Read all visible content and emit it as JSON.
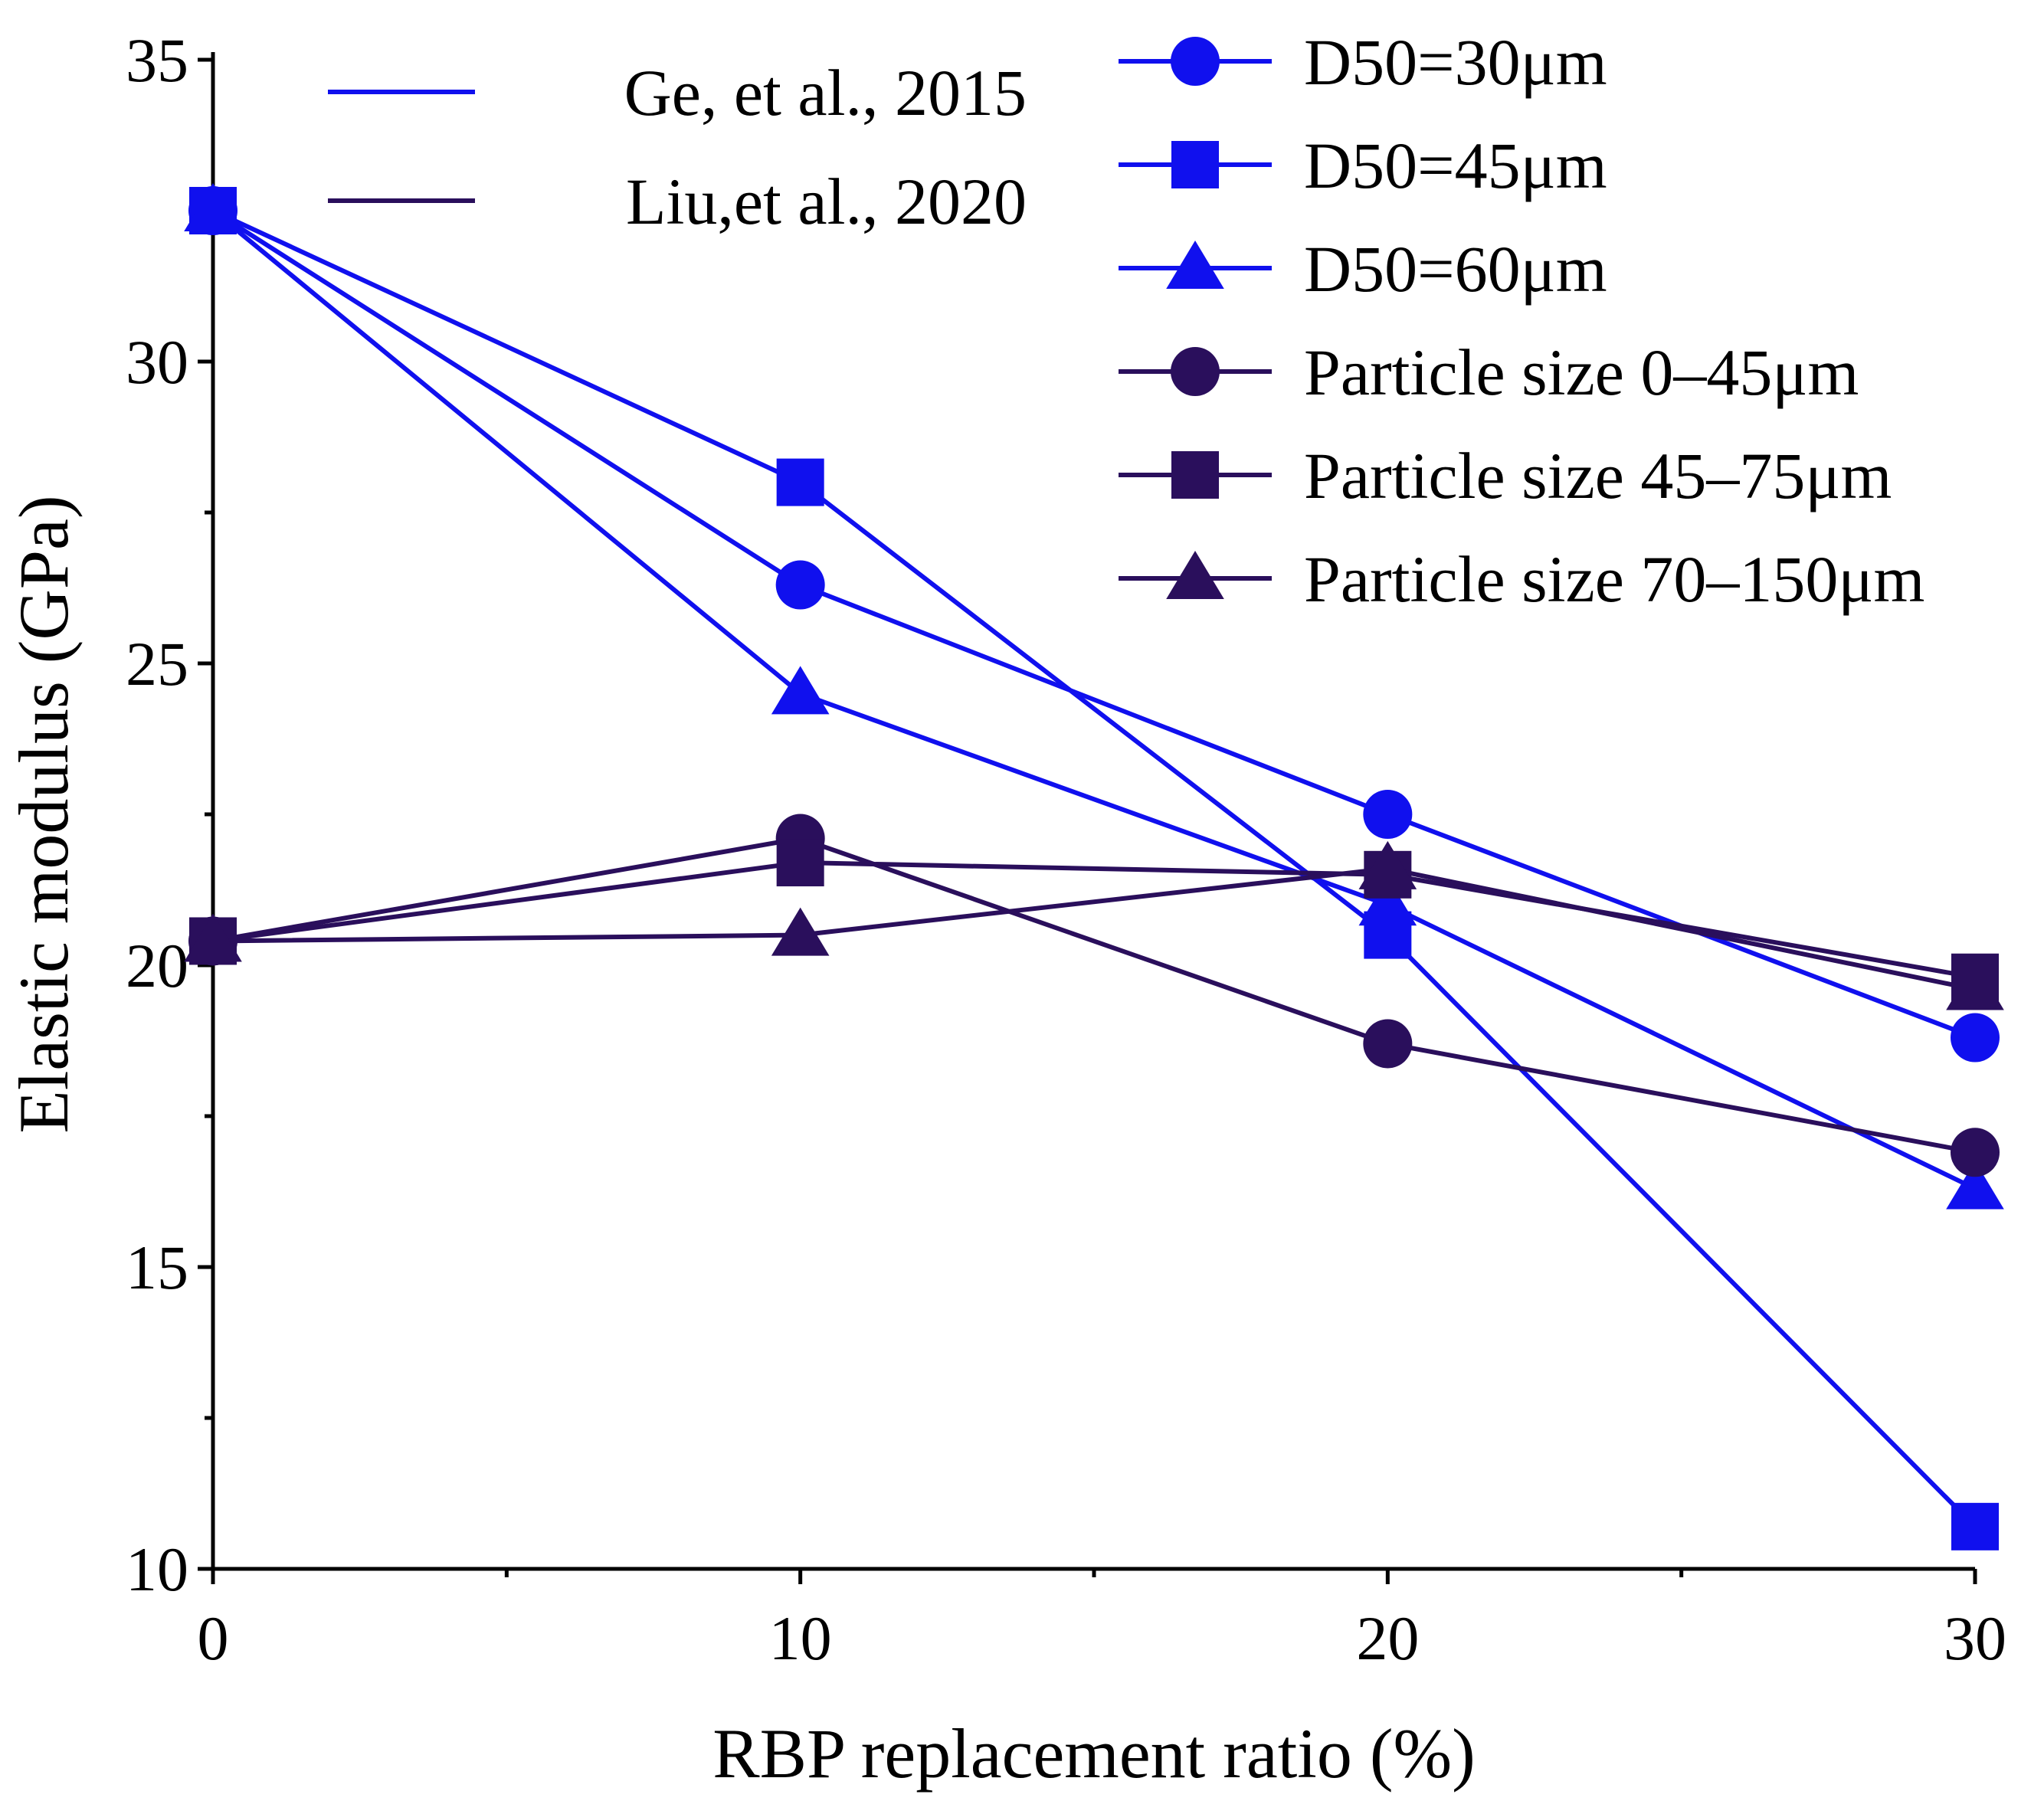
{
  "chart_data": {
    "type": "line",
    "title": "",
    "xlabel": "RBP replacement ratio (%)",
    "ylabel": "Elastic modulus (GPa)",
    "xlim": [
      0,
      30
    ],
    "ylim": [
      10,
      35
    ],
    "x_ticks": [
      "0",
      "10",
      "20",
      "30"
    ],
    "y_ticks": [
      "10",
      "15",
      "20",
      "25",
      "30",
      "35"
    ],
    "x_tick_values": [
      0,
      10,
      20,
      30
    ],
    "y_tick_values": [
      10,
      15,
      20,
      25,
      30,
      35
    ],
    "x_minor_ticks": [
      5,
      15,
      25
    ],
    "y_minor_ticks": [
      12.5,
      17.5,
      22.5,
      27.5,
      32.5
    ],
    "grid": false,
    "source_legend": [
      {
        "label": "Ge, et al., 2015",
        "color": "#1010ee"
      },
      {
        "label": "Liu,et al., 2020",
        "color": "#2a0f5c"
      }
    ],
    "series": [
      {
        "name": "D50=30μm",
        "marker": "circle",
        "color": "#1010ee",
        "x": [
          0,
          10,
          20,
          30
        ],
        "y": [
          32.5,
          26.3,
          22.5,
          18.8
        ]
      },
      {
        "name": "D50=45μm",
        "marker": "square",
        "color": "#1010ee",
        "x": [
          0,
          10,
          20,
          30
        ],
        "y": [
          32.5,
          28.0,
          20.5,
          10.7
        ]
      },
      {
        "name": "D50=60μm",
        "marker": "triangle",
        "color": "#1010ee",
        "x": [
          0,
          10,
          20,
          30
        ],
        "y": [
          32.5,
          24.5,
          21.0,
          16.3
        ]
      },
      {
        "name": "Particle size 0–45μm",
        "marker": "circle",
        "color": "#2a0f5c",
        "x": [
          0,
          10,
          20,
          30
        ],
        "y": [
          20.4,
          22.1,
          18.7,
          16.9
        ]
      },
      {
        "name": "Particle size 45–75μm",
        "marker": "square",
        "color": "#2a0f5c",
        "x": [
          0,
          10,
          20,
          30
        ],
        "y": [
          20.4,
          21.7,
          21.5,
          19.8
        ]
      },
      {
        "name": "Particle size 70–150μm",
        "marker": "triangle",
        "color": "#2a0f5c",
        "x": [
          0,
          10,
          20,
          30
        ],
        "y": [
          20.4,
          20.5,
          21.6,
          19.6
        ]
      }
    ]
  }
}
